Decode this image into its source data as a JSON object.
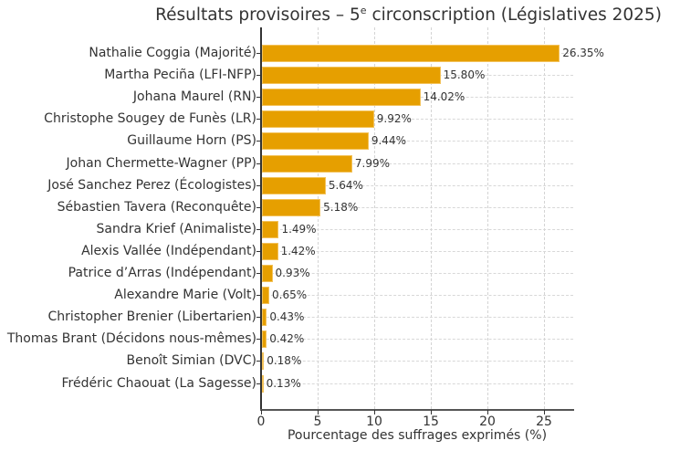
{
  "chart": {
    "title_prefix": "Résultats provisoires – 5",
    "title_sup": "e",
    "title_suffix": " circonscription (Législatives 2025)",
    "xlabel": "Pourcentage des suffrages exprimés (%)",
    "bar_color": "#e69f00"
  },
  "chart_data": {
    "type": "bar",
    "orientation": "horizontal",
    "title": "Résultats provisoires – 5e circonscription (Législatives 2025)",
    "xlabel": "Pourcentage des suffrages exprimés (%)",
    "ylabel": "",
    "xlim": [
      0,
      27.67
    ],
    "xticks": [
      0,
      5,
      10,
      15,
      20,
      25
    ],
    "grid": true,
    "legend": null,
    "categories": [
      "Nathalie Coggia (Majorité)",
      "Martha Peciña (LFI-NFP)",
      "Johana Maurel (RN)",
      "Christophe Sougey de Funès (LR)",
      "Guillaume Horn (PS)",
      "Johan Chermette-Wagner (PP)",
      "José Sanchez Perez (Écologistes)",
      "Sébastien Tavera (Reconquête)",
      "Sandra Krief (Animaliste)",
      "Alexis Vallée (Indépendant)",
      "Patrice d’Arras (Indépendant)",
      "Alexandre Marie (Volt)",
      "Christopher Brenier (Libertarien)",
      "Thomas Brant (Décidons nous-mêmes)",
      "Benoît Simian (DVC)",
      "Frédéric Chaouat (La Sagesse)"
    ],
    "values": [
      26.35,
      15.8,
      14.02,
      9.92,
      9.44,
      7.99,
      5.64,
      5.18,
      1.49,
      1.42,
      0.93,
      0.65,
      0.43,
      0.42,
      0.18,
      0.13
    ],
    "value_labels": [
      "26.35%",
      "15.80%",
      "14.02%",
      "9.92%",
      "9.44%",
      "7.99%",
      "5.64%",
      "5.18%",
      "1.49%",
      "1.42%",
      "0.93%",
      "0.65%",
      "0.43%",
      "0.42%",
      "0.18%",
      "0.13%"
    ]
  }
}
